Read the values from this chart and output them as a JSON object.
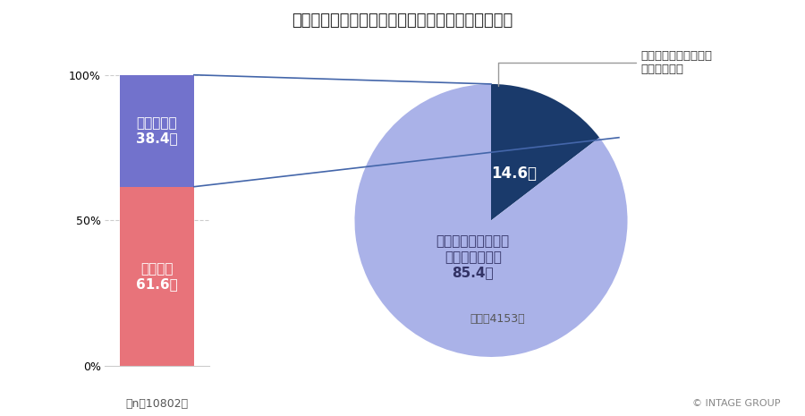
{
  "title": "図表１：循環経済型サブスクの認知度および利用率",
  "background_color": "#ffffff",
  "bar_know_pct": 38.4,
  "bar_not_know_pct": 61.6,
  "bar_know_label": "知っている\n38.4％",
  "bar_not_know_label": "知らない\n61.6％",
  "bar_know_color": "#7272cc",
  "bar_not_know_color": "#e8737a",
  "pie_use_pct": 14.6,
  "pie_not_use_pct": 85.4,
  "pie_use_label": "14.6％",
  "pie_not_use_label": "いずれのサービスも\n利用していない\n85.4％",
  "pie_use_color": "#1a3a6b",
  "pie_not_use_color": "#aab2e8",
  "pie_annotation": "いずれかのサービスを\n利用している",
  "bar_n_label": "（n＝10802）",
  "pie_n_label": "（ｎ＝4153）",
  "yticks": [
    0,
    50,
    100
  ],
  "ytick_labels": [
    "0%",
    "50%",
    "100%"
  ],
  "copyright": "© INTAGE GROUP",
  "title_fontsize": 13,
  "label_fontsize": 11,
  "annotation_fontsize": 9.5,
  "n_label_fontsize": 9,
  "connector_color": "#4466aa",
  "annotation_line_color": "#999999"
}
